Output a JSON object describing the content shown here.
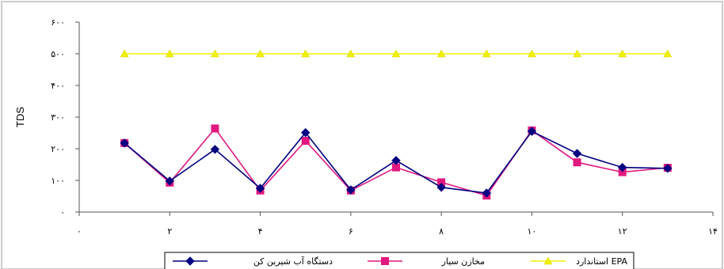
{
  "chart_data": {
    "type": "line",
    "title": "",
    "xlabel": "",
    "ylabel": "TDS",
    "xlim": [
      0,
      14
    ],
    "ylim": [
      0,
      600
    ],
    "x_ticks": [
      {
        "v": 0,
        "label": "۰"
      },
      {
        "v": 2,
        "label": "۲"
      },
      {
        "v": 4,
        "label": "۴"
      },
      {
        "v": 6,
        "label": "۶"
      },
      {
        "v": 8,
        "label": "۸"
      },
      {
        "v": 10,
        "label": "۱۰"
      },
      {
        "v": 12,
        "label": "۱۲"
      },
      {
        "v": 14,
        "label": "۱۴"
      }
    ],
    "y_ticks": [
      {
        "v": 0,
        "label": "۰"
      },
      {
        "v": 100,
        "label": "۱۰۰"
      },
      {
        "v": 200,
        "label": "۲۰۰"
      },
      {
        "v": 300,
        "label": "۳۰۰"
      },
      {
        "v": 400,
        "label": "۴۰۰"
      },
      {
        "v": 500,
        "label": "۵۰۰"
      },
      {
        "v": 600,
        "label": "۶۰۰"
      }
    ],
    "grid": false,
    "legend_position": "bottom",
    "x": [
      1,
      2,
      3,
      4,
      5,
      6,
      7,
      8,
      9,
      10,
      11,
      12,
      13
    ],
    "series": [
      {
        "name": "دستگاه آب شیرین کن",
        "color": "#000080",
        "marker": "diamond",
        "values": [
          218,
          98,
          198,
          75,
          251,
          70,
          163,
          78,
          60,
          255,
          185,
          141,
          138
        ]
      },
      {
        "name": "مخازن سیار",
        "color": "#e0187f",
        "marker": "square",
        "values": [
          218,
          93,
          264,
          68,
          225,
          68,
          141,
          94,
          52,
          258,
          157,
          126,
          140
        ]
      },
      {
        "name": "استاندارد EPA",
        "color": "#f0f000",
        "marker": "triangle",
        "values": [
          500,
          500,
          500,
          500,
          500,
          500,
          500,
          500,
          500,
          500,
          500,
          500,
          500
        ]
      }
    ]
  }
}
